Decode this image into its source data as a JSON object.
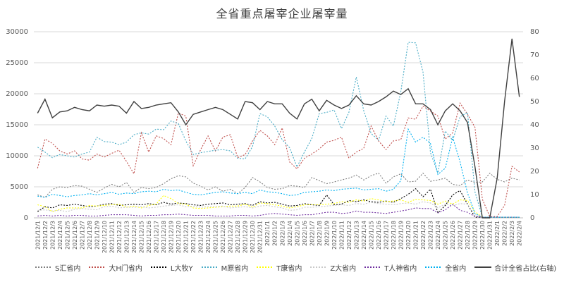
{
  "chart_data": {
    "type": "line",
    "title": "全省重点屠宰企业屠宰量",
    "y_left": {
      "lim": [
        0,
        30000
      ],
      "ticks": [
        "0",
        "5000",
        "10000",
        "15000",
        "20000",
        "25000",
        "30000"
      ]
    },
    "y_right": {
      "lim": [
        0,
        80
      ],
      "ticks": [
        "0",
        "10",
        "20",
        "30",
        "40",
        "50",
        "60",
        "70",
        "80"
      ]
    },
    "grid": true,
    "legend_position": "bottom",
    "x": [
      "2021/12/1",
      "2021/12/2",
      "2021/12/3",
      "2021/12/4",
      "2021/12/5",
      "2021/12/6",
      "2021/12/7",
      "2021/12/8",
      "2021/12/9",
      "2021/12/10",
      "2021/12/11",
      "2021/12/12",
      "2021/12/13",
      "2021/12/14",
      "2021/12/15",
      "2021/12/16",
      "2021/12/17",
      "2021/12/18",
      "2021/12/19",
      "2021/12/20",
      "2021/12/21",
      "2021/12/22",
      "2021/12/23",
      "2021/12/24",
      "2021/12/25",
      "2021/12/26",
      "2021/12/27",
      "2021/12/28",
      "2021/12/29",
      "2021/12/30",
      "2021/12/31",
      "2022/1/1",
      "2022/1/2",
      "2022/1/3",
      "2022/1/4",
      "2022/1/5",
      "2022/1/6",
      "2022/1/7",
      "2022/1/8",
      "2022/1/9",
      "2022/1/10",
      "2022/1/11",
      "2022/1/12",
      "2022/1/13",
      "2022/1/14",
      "2022/1/15",
      "2022/1/16",
      "2022/1/17",
      "2022/1/18",
      "2022/1/19",
      "2022/1/20",
      "2022/1/21",
      "2022/1/22",
      "2022/1/23",
      "2022/1/24",
      "2022/1/25",
      "2022/1/26",
      "2022/1/27",
      "2022/1/28",
      "2022/1/29",
      "2022/1/30",
      "2022/1/31",
      "2022/2/1",
      "2022/2/2",
      "2022/2/3",
      "2022/2/4"
    ],
    "series": [
      {
        "name": "S汇省内",
        "axis": "left",
        "color": "#7f7f7f",
        "dash": "2,2",
        "values": [
          3700,
          3300,
          4600,
          5000,
          4900,
          5200,
          5100,
          4600,
          4100,
          4800,
          5400,
          5000,
          5700,
          4100,
          4900,
          4700,
          4900,
          5500,
          6300,
          6800,
          6600,
          5600,
          5100,
          4500,
          5000,
          4300,
          4600,
          3900,
          4900,
          6500,
          5800,
          4900,
          4600,
          4700,
          5200,
          5100,
          4900,
          6500,
          6000,
          5500,
          5800,
          6100,
          6400,
          6900,
          6100,
          6800,
          7200,
          5600,
          6600,
          7100,
          5800,
          5900,
          7200,
          5900,
          6100,
          6400,
          5400,
          5200,
          6100,
          5700,
          5800,
          7200,
          6200,
          5800,
          6400,
          6100
        ]
      },
      {
        "name": "大H门省内",
        "axis": "left",
        "color": "#c0504d",
        "dash": "2,2",
        "values": [
          8000,
          12700,
          12000,
          10800,
          10300,
          10800,
          9500,
          9300,
          10300,
          9800,
          10400,
          10900,
          9100,
          7100,
          13700,
          10600,
          13200,
          12800,
          11800,
          16900,
          16400,
          8400,
          11000,
          13200,
          10800,
          13000,
          13400,
          9700,
          10200,
          12400,
          14100,
          13200,
          11800,
          14500,
          9000,
          7900,
          9600,
          10300,
          11100,
          12200,
          12500,
          13000,
          9600,
          10600,
          11200,
          14800,
          12400,
          11000,
          12400,
          12600,
          16100,
          15900,
          18000,
          17200,
          16400,
          12700,
          13700,
          18500,
          16700,
          14600,
          3000,
          200,
          200,
          2000,
          8300,
          7400
        ]
      },
      {
        "name": "L大牧Y",
        "axis": "left",
        "color": "#000000",
        "dash": "2,2",
        "values": [
          1000,
          1800,
          1600,
          2100,
          2000,
          2200,
          2000,
          1800,
          1900,
          2200,
          2300,
          2000,
          2100,
          2200,
          2100,
          2300,
          2100,
          2500,
          2200,
          2400,
          2300,
          2100,
          2000,
          2200,
          2300,
          2400,
          2100,
          2200,
          2300,
          2000,
          2600,
          2400,
          2500,
          2200,
          1900,
          2000,
          2300,
          2100,
          2000,
          3700,
          2100,
          2200,
          2800,
          2600,
          2900,
          2600,
          2500,
          2700,
          2500,
          3100,
          3800,
          4700,
          3400,
          4600,
          800,
          2000,
          3700,
          4400,
          2200,
          100,
          100,
          100,
          100,
          100,
          100,
          100
        ]
      },
      {
        "name": "M原省内",
        "axis": "left",
        "color": "#4bacc6",
        "dash": "2,2",
        "values": [
          11400,
          10600,
          9700,
          10200,
          10000,
          9800,
          10300,
          10600,
          13000,
          12300,
          12200,
          11800,
          12200,
          13400,
          13700,
          13500,
          14300,
          14200,
          15600,
          15200,
          12400,
          10200,
          10500,
          10700,
          10900,
          11000,
          10800,
          9600,
          9500,
          11500,
          16800,
          16300,
          14800,
          12600,
          11300,
          8200,
          10600,
          12800,
          16800,
          17000,
          17400,
          14400,
          17000,
          22700,
          17300,
          13600,
          12500,
          16400,
          14800,
          20300,
          28300,
          28200,
          23500,
          10500,
          7200,
          14000,
          12500,
          16300,
          17000,
          4200,
          100,
          100,
          100,
          100,
          100,
          100
        ]
      },
      {
        "name": "T康省内",
        "axis": "left",
        "color": "#ffff00",
        "dash": "2,2",
        "values": [
          2100,
          1800,
          1000,
          1400,
          1600,
          1600,
          1600,
          2000,
          1900,
          2000,
          2100,
          2200,
          1700,
          1900,
          1600,
          2000,
          2200,
          3600,
          3100,
          2300,
          2200,
          1600,
          1500,
          1600,
          1700,
          1800,
          1900,
          1900,
          2200,
          1700,
          2400,
          2300,
          2100,
          1900,
          1600,
          1800,
          2100,
          2100,
          2100,
          2200,
          2300,
          2600,
          2500,
          2900,
          2700,
          3100,
          2900,
          2600,
          2700,
          2900,
          2500,
          3000,
          2900,
          2800,
          2200,
          2700,
          2200,
          2900,
          2800,
          1000,
          100,
          100,
          100,
          100,
          100,
          100
        ]
      },
      {
        "name": "Z大省内",
        "axis": "left",
        "color": "#c9c9c9",
        "dash": "2,2",
        "values": [
          1200,
          1300,
          1100,
          1200,
          1000,
          1400,
          1500,
          1400,
          1300,
          1800,
          1900,
          1600,
          1700,
          1700,
          1800,
          1600,
          1700,
          1900,
          2000,
          2100,
          1800,
          1900,
          1700,
          1800,
          1800,
          1900,
          1600,
          1700,
          1800,
          1600,
          1900,
          2000,
          1800,
          1600,
          1200,
          1300,
          1700,
          1700,
          1800,
          1900,
          2000,
          2100,
          2000,
          2300,
          2200,
          2500,
          2300,
          2200,
          2100,
          2300,
          2400,
          2200,
          2600,
          2400,
          1600,
          2200,
          2000,
          2300,
          2200,
          500,
          100,
          100,
          100,
          100,
          100,
          100
        ]
      },
      {
        "name": "T人神省内",
        "axis": "left",
        "color": "#7030a0",
        "dash": "2,2",
        "values": [
          300,
          400,
          300,
          400,
          300,
          400,
          400,
          300,
          300,
          400,
          500,
          500,
          500,
          400,
          300,
          400,
          400,
          500,
          500,
          600,
          500,
          400,
          400,
          400,
          300,
          300,
          300,
          400,
          400,
          300,
          400,
          600,
          700,
          600,
          500,
          400,
          500,
          500,
          700,
          900,
          900,
          700,
          800,
          1100,
          900,
          900,
          800,
          700,
          900,
          1100,
          1300,
          1600,
          1500,
          1500,
          800,
          1300,
          2200,
          1200,
          900,
          200,
          100,
          100,
          100,
          100,
          100,
          100
        ]
      },
      {
        "name": "全省内",
        "axis": "left",
        "color": "#00b0f0",
        "dash": "2,2",
        "values": [
          3500,
          3300,
          3800,
          3600,
          3400,
          3600,
          3700,
          3900,
          3700,
          3900,
          4100,
          3800,
          4000,
          3900,
          4200,
          4300,
          4200,
          4600,
          4400,
          4500,
          4100,
          3800,
          3700,
          3900,
          4100,
          4200,
          4000,
          3900,
          4100,
          3900,
          4500,
          4200,
          4100,
          3900,
          3600,
          3700,
          4100,
          4200,
          4300,
          4500,
          4400,
          4600,
          4700,
          4800,
          4500,
          4600,
          4700,
          4300,
          4600,
          6000,
          14300,
          12200,
          13000,
          12000,
          7000,
          8000,
          13000,
          9000,
          4000,
          700,
          100,
          100,
          100,
          100,
          100,
          100
        ]
      },
      {
        "name": "合计全省占比(右轴)",
        "axis": "right",
        "color": "#404040",
        "dash": "",
        "values": [
          45,
          51,
          43,
          45.5,
          46,
          47.5,
          46.5,
          46,
          48.5,
          48,
          48.5,
          48,
          45,
          50,
          47,
          47.5,
          48.5,
          49,
          49.5,
          45.5,
          40,
          44.5,
          45.5,
          46.5,
          47.5,
          46.5,
          44.5,
          42.5,
          50,
          49.5,
          46.5,
          50,
          49,
          49,
          45,
          42.5,
          49,
          51,
          46,
          50.5,
          48.5,
          47,
          48.5,
          52.5,
          49,
          48.5,
          50,
          52,
          54.5,
          53,
          55.5,
          49,
          49,
          46.5,
          40,
          46,
          49,
          46,
          41,
          22,
          0,
          0,
          17,
          50,
          77,
          52
        ]
      }
    ]
  }
}
